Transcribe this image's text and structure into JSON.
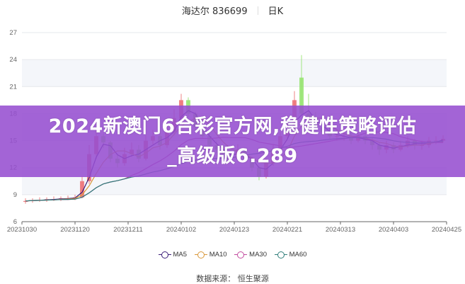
{
  "header": {
    "stock": "海达尔 836699",
    "period": "日K"
  },
  "banner": {
    "line1": "2024新澳门6合彩官方网,稳健性策略评估",
    "line2": "_高级版6.289"
  },
  "source": "数据来源：  恒生聚源",
  "colors": {
    "up": "#ec6e72",
    "down": "#93e36c",
    "ma5": "#3b1d78",
    "ma10": "#d9983a",
    "ma30": "#c24b9f",
    "ma60": "#2f7d79",
    "band": "#f4f6fa",
    "axis": "#666666"
  },
  "chart_data": {
    "type": "candlestick",
    "ylim": [
      6,
      27
    ],
    "yticks": [
      "27",
      "24",
      "21",
      "18",
      "15",
      "12",
      "9",
      "6"
    ],
    "xticks": [
      "20231030",
      "20231120",
      "20231211",
      "20240102",
      "20240123",
      "20240221",
      "20240313",
      "20240403",
      "20240425"
    ],
    "grid": true,
    "legend": {
      "placement": "bottom",
      "entries": [
        "MA5",
        "MA10",
        "MA30",
        "MA60"
      ]
    },
    "candles": {
      "open": [
        8.2,
        8.3,
        8.4,
        8.4,
        8.5,
        8.5,
        8.6,
        8.6,
        8.7,
        10.5,
        13.5,
        15.5,
        14.8,
        13.0,
        12.5,
        13.5,
        14.0,
        13.0,
        15.0,
        15.5,
        14.5,
        16.0,
        17.5,
        19.5,
        18.0,
        16.5,
        15.5,
        14.5,
        14.0,
        13.5,
        13.0,
        14.0,
        13.0,
        12.0,
        11.0,
        12.5,
        14.0,
        15.5,
        16.5,
        22.0,
        18.0,
        17.5,
        16.5,
        16.0,
        15.5,
        15.5,
        15.5,
        15.0,
        15.5,
        15.0,
        14.5,
        14.0,
        14.5,
        14.0,
        14.5,
        15.0,
        14.5,
        14.5,
        15.0,
        15.0
      ],
      "close": [
        8.3,
        8.4,
        8.4,
        8.5,
        8.5,
        8.6,
        8.6,
        8.7,
        10.5,
        13.5,
        15.5,
        14.8,
        13.0,
        12.5,
        13.5,
        14.0,
        13.0,
        15.0,
        15.5,
        14.5,
        16.0,
        17.5,
        19.5,
        18.0,
        16.5,
        15.5,
        14.5,
        14.0,
        13.5,
        13.0,
        14.0,
        13.0,
        12.0,
        11.0,
        12.5,
        14.0,
        15.5,
        16.0,
        19.5,
        18.0,
        17.5,
        16.5,
        16.0,
        15.5,
        15.5,
        15.5,
        15.0,
        15.5,
        15.0,
        14.5,
        14.0,
        14.5,
        14.0,
        14.5,
        15.0,
        14.5,
        14.5,
        15.0,
        15.0,
        15.2
      ],
      "high": [
        8.6,
        8.6,
        8.7,
        8.7,
        8.8,
        8.8,
        8.9,
        9.0,
        11.0,
        14.5,
        16.5,
        15.8,
        15.0,
        13.5,
        14.2,
        14.8,
        14.5,
        15.6,
        16.2,
        16.0,
        16.8,
        18.5,
        20.2,
        19.8,
        18.2,
        16.8,
        15.8,
        15.0,
        14.5,
        14.0,
        14.6,
        14.2,
        13.2,
        12.2,
        13.0,
        14.6,
        16.0,
        17.0,
        20.5,
        24.5,
        20.2,
        18.2,
        17.2,
        16.5,
        16.2,
        16.0,
        16.0,
        16.0,
        15.8,
        15.3,
        14.8,
        15.0,
        14.8,
        15.0,
        15.5,
        15.2,
        15.0,
        15.4,
        15.5,
        15.6
      ],
      "low": [
        8.0,
        8.1,
        8.2,
        8.2,
        8.3,
        8.3,
        8.4,
        8.4,
        8.6,
        10.2,
        13.0,
        14.2,
        12.6,
        12.0,
        12.2,
        13.2,
        12.6,
        12.8,
        14.6,
        14.0,
        14.2,
        15.6,
        17.2,
        17.6,
        16.2,
        15.2,
        14.2,
        13.6,
        13.2,
        12.6,
        12.8,
        12.6,
        11.6,
        10.6,
        10.8,
        12.2,
        13.8,
        15.2,
        16.2,
        17.8,
        17.2,
        16.2,
        15.6,
        15.2,
        15.0,
        15.0,
        14.6,
        14.8,
        14.6,
        14.0,
        13.4,
        13.6,
        13.6,
        13.8,
        14.2,
        14.0,
        14.0,
        14.2,
        14.6,
        14.8
      ]
    }
  }
}
